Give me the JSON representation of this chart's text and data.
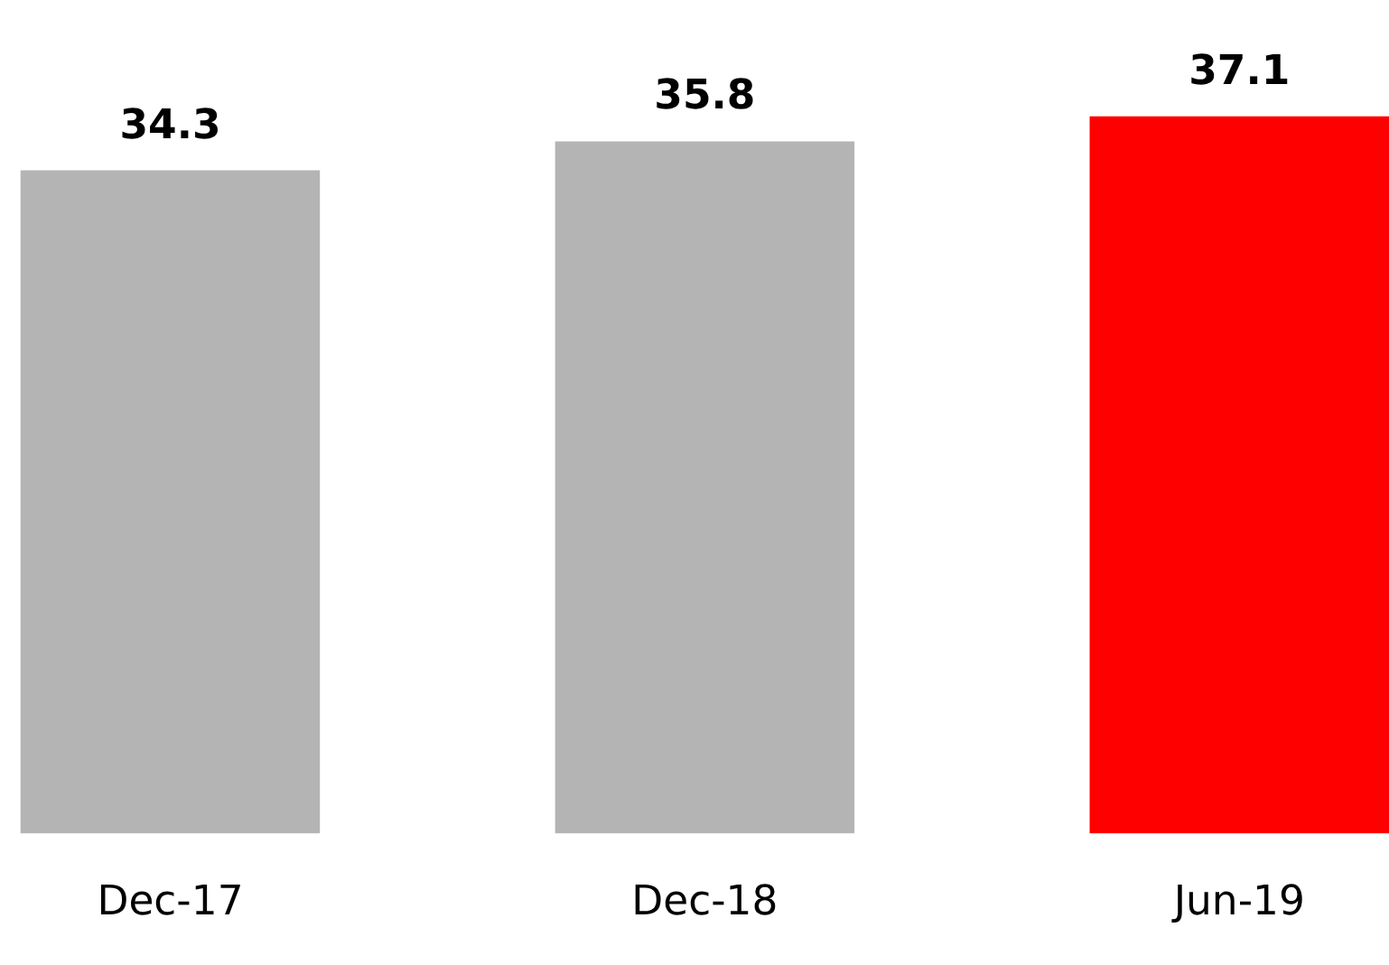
{
  "chart_data": {
    "type": "bar",
    "categories": [
      "Dec-17",
      "Dec-18",
      "Jun-19"
    ],
    "values": [
      34.3,
      35.8,
      37.1
    ],
    "colors": [
      "#b4b4b4",
      "#b4b4b4",
      "#ff0000"
    ],
    "data_labels": true,
    "tick_labels": "x",
    "grid": false
  }
}
